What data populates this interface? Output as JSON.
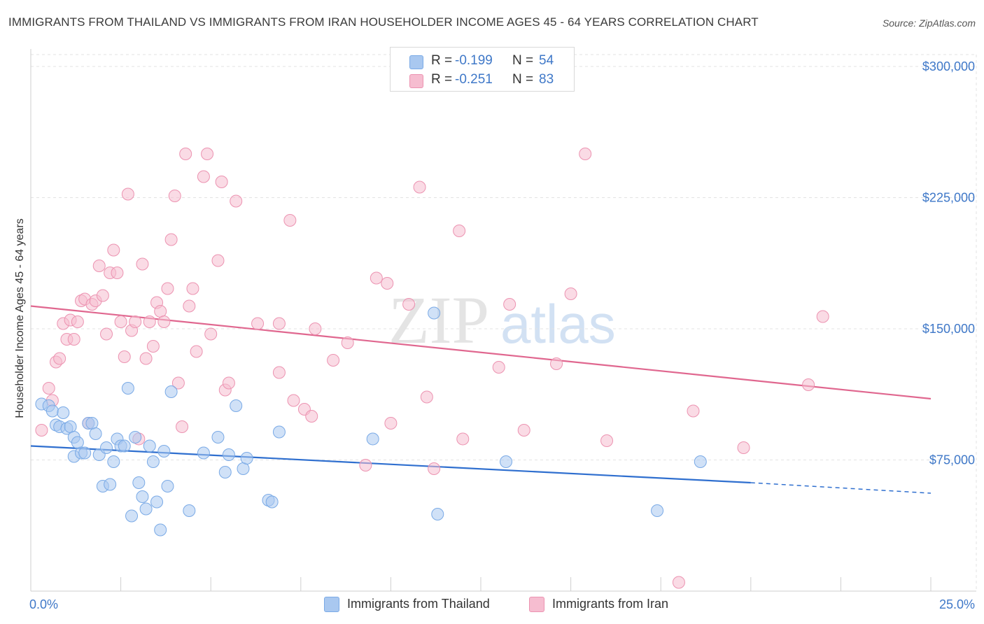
{
  "header": {
    "title": "IMMIGRANTS FROM THAILAND VS IMMIGRANTS FROM IRAN HOUSEHOLDER INCOME AGES 45 - 64 YEARS CORRELATION CHART",
    "source": "Source: ZipAtlas.com"
  },
  "legend": {
    "rows": [
      {
        "r_label": "R = ",
        "r_value": "-0.199",
        "n_label": "N = ",
        "n_value": "54"
      },
      {
        "r_label": "R = ",
        "r_value": "-0.251",
        "n_label": "N = ",
        "n_value": "83"
      }
    ]
  },
  "bottom_legend": {
    "thailand": "Immigrants from Thailand",
    "iran": "Immigrants from Iran"
  },
  "watermark": {
    "zip": "ZIP",
    "atlas": "atlas"
  },
  "colors": {
    "thailand_fill": "#a9c8f0",
    "thailand_stroke": "#7aaae6",
    "thailand_line": "#2f6fcf",
    "iran_fill": "#f6bdd0",
    "iran_stroke": "#ec93b1",
    "iran_line": "#e0678f",
    "tick_text": "#3f78c8"
  },
  "chart_data": {
    "type": "scatter",
    "title": "IMMIGRANTS FROM THAILAND VS IMMIGRANTS FROM IRAN HOUSEHOLDER INCOME AGES 45 - 64 YEARS CORRELATION CHART",
    "xlabel": "",
    "ylabel": "Householder Income Ages 45 - 64 years",
    "xlim": [
      0,
      25
    ],
    "ylim": [
      0,
      310000
    ],
    "x_tick_labels": [
      "0.0%",
      "25.0%"
    ],
    "y_ticks": [
      75000,
      150000,
      225000,
      300000
    ],
    "y_tick_labels": [
      "$75,000",
      "$150,000",
      "$225,000",
      "$300,000"
    ],
    "grid": true,
    "legend_position": "top-center",
    "series": [
      {
        "name": "Immigrants from Thailand",
        "R": -0.199,
        "N": 54,
        "trend": {
          "x0": 0,
          "y0": 83000,
          "x1": 20,
          "y1": 62000,
          "dashed_to_x": 25,
          "dashed_to_y": 56000
        },
        "points": [
          [
            0.3,
            107000
          ],
          [
            0.5,
            106000
          ],
          [
            0.6,
            103000
          ],
          [
            0.7,
            95000
          ],
          [
            0.8,
            94000
          ],
          [
            0.9,
            102000
          ],
          [
            1.0,
            93000
          ],
          [
            1.1,
            94000
          ],
          [
            1.2,
            88000
          ],
          [
            1.3,
            85000
          ],
          [
            1.2,
            77000
          ],
          [
            1.4,
            79000
          ],
          [
            1.5,
            79000
          ],
          [
            1.6,
            96000
          ],
          [
            1.7,
            96000
          ],
          [
            1.8,
            90000
          ],
          [
            1.9,
            78000
          ],
          [
            2.0,
            60000
          ],
          [
            2.1,
            82000
          ],
          [
            2.2,
            61000
          ],
          [
            2.3,
            74000
          ],
          [
            2.4,
            87000
          ],
          [
            2.5,
            83000
          ],
          [
            2.6,
            83000
          ],
          [
            2.7,
            116000
          ],
          [
            2.8,
            43000
          ],
          [
            2.9,
            88000
          ],
          [
            3.0,
            62000
          ],
          [
            3.1,
            54000
          ],
          [
            3.2,
            47000
          ],
          [
            3.3,
            83000
          ],
          [
            3.4,
            74000
          ],
          [
            3.5,
            51000
          ],
          [
            3.6,
            35000
          ],
          [
            3.7,
            80000
          ],
          [
            3.8,
            60000
          ],
          [
            3.9,
            114000
          ],
          [
            4.4,
            46000
          ],
          [
            4.8,
            79000
          ],
          [
            5.2,
            88000
          ],
          [
            5.4,
            68000
          ],
          [
            5.5,
            78000
          ],
          [
            5.7,
            106000
          ],
          [
            5.9,
            70000
          ],
          [
            6.0,
            76000
          ],
          [
            6.6,
            52000
          ],
          [
            6.7,
            51000
          ],
          [
            6.9,
            91000
          ],
          [
            9.5,
            87000
          ],
          [
            11.2,
            159000
          ],
          [
            11.3,
            44000
          ],
          [
            13.2,
            74000
          ],
          [
            17.4,
            46000
          ],
          [
            18.6,
            74000
          ]
        ]
      },
      {
        "name": "Immigrants from Iran",
        "R": -0.251,
        "N": 83,
        "trend": {
          "x0": 0,
          "y0": 163000,
          "x1": 25,
          "y1": 110000
        },
        "points": [
          [
            0.3,
            92000
          ],
          [
            0.5,
            116000
          ],
          [
            0.6,
            109000
          ],
          [
            0.7,
            131000
          ],
          [
            0.8,
            133000
          ],
          [
            0.9,
            153000
          ],
          [
            1.0,
            144000
          ],
          [
            1.1,
            155000
          ],
          [
            1.2,
            144000
          ],
          [
            1.3,
            154000
          ],
          [
            1.4,
            166000
          ],
          [
            1.5,
            167000
          ],
          [
            1.6,
            96000
          ],
          [
            1.7,
            164000
          ],
          [
            1.8,
            166000
          ],
          [
            1.9,
            186000
          ],
          [
            2.0,
            169000
          ],
          [
            2.1,
            147000
          ],
          [
            2.2,
            182000
          ],
          [
            2.3,
            195000
          ],
          [
            2.4,
            182000
          ],
          [
            2.5,
            154000
          ],
          [
            2.6,
            134000
          ],
          [
            2.7,
            227000
          ],
          [
            2.8,
            149000
          ],
          [
            2.9,
            154000
          ],
          [
            3.0,
            87000
          ],
          [
            3.1,
            187000
          ],
          [
            3.2,
            133000
          ],
          [
            3.3,
            154000
          ],
          [
            3.4,
            140000
          ],
          [
            3.5,
            165000
          ],
          [
            3.6,
            160000
          ],
          [
            3.7,
            154000
          ],
          [
            3.8,
            173000
          ],
          [
            3.9,
            201000
          ],
          [
            4.0,
            226000
          ],
          [
            4.1,
            119000
          ],
          [
            4.2,
            94000
          ],
          [
            4.3,
            250000
          ],
          [
            4.4,
            163000
          ],
          [
            4.5,
            173000
          ],
          [
            4.6,
            137000
          ],
          [
            4.8,
            237000
          ],
          [
            4.9,
            250000
          ],
          [
            5.0,
            147000
          ],
          [
            5.2,
            189000
          ],
          [
            5.3,
            234000
          ],
          [
            5.4,
            115000
          ],
          [
            5.5,
            119000
          ],
          [
            5.7,
            223000
          ],
          [
            6.3,
            153000
          ],
          [
            6.9,
            153000
          ],
          [
            6.9,
            125000
          ],
          [
            7.2,
            212000
          ],
          [
            7.3,
            109000
          ],
          [
            7.6,
            104000
          ],
          [
            7.8,
            100000
          ],
          [
            7.9,
            150000
          ],
          [
            8.4,
            132000
          ],
          [
            8.8,
            142000
          ],
          [
            9.3,
            72000
          ],
          [
            9.6,
            179000
          ],
          [
            9.9,
            176000
          ],
          [
            10.0,
            96000
          ],
          [
            10.5,
            164000
          ],
          [
            10.8,
            231000
          ],
          [
            11.0,
            111000
          ],
          [
            11.2,
            70000
          ],
          [
            11.9,
            206000
          ],
          [
            12.0,
            87000
          ],
          [
            13.0,
            128000
          ],
          [
            13.3,
            164000
          ],
          [
            13.7,
            92000
          ],
          [
            14.6,
            130000
          ],
          [
            15.0,
            170000
          ],
          [
            15.4,
            250000
          ],
          [
            16.0,
            86000
          ],
          [
            18.4,
            103000
          ],
          [
            19.8,
            82000
          ],
          [
            21.6,
            118000
          ],
          [
            22.0,
            157000
          ],
          [
            18.0,
            5000
          ]
        ]
      }
    ]
  }
}
